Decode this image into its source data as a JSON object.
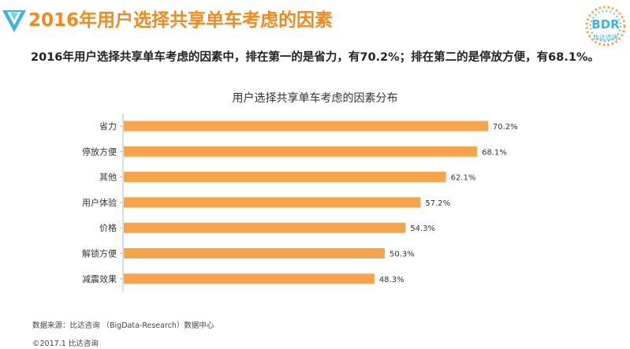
{
  "header": {
    "title": "2016年用户选择共享单车考虑的因素",
    "logo_icon": "v-triangle-logo-icon",
    "brand": {
      "logo_text": "BDR",
      "logo_subtext": "比达咨询"
    }
  },
  "summary": "2016年用户选择共享单车考虑的因素中，排在第一的是省力，有70.2%；排在第二的是停放方便，有68.1%。",
  "footer": {
    "source": "数据来源：比达咨询 （BigData-Research）数据中心",
    "copyright": "©2017.1  比达咨询"
  },
  "colors": {
    "bar": "#f8a349",
    "accent": "#f08a1c",
    "axis": "#bbbbbb"
  },
  "chart_data": {
    "type": "bar",
    "orientation": "horizontal",
    "title": "用户选择共享单车考虑的因素分布",
    "categories": [
      "省力",
      "停放方便",
      "其他",
      "用户体验",
      "价格",
      "解锁方便",
      "减震效果"
    ],
    "values": [
      70.2,
      68.1,
      62.1,
      57.2,
      54.3,
      50.3,
      48.3
    ],
    "value_labels": [
      "70.2%",
      "68.1%",
      "62.1%",
      "57.2%",
      "54.3%",
      "50.3%",
      "48.3%"
    ],
    "unit": "%",
    "xlim": [
      0,
      80
    ],
    "grid": false,
    "legend": "none"
  }
}
